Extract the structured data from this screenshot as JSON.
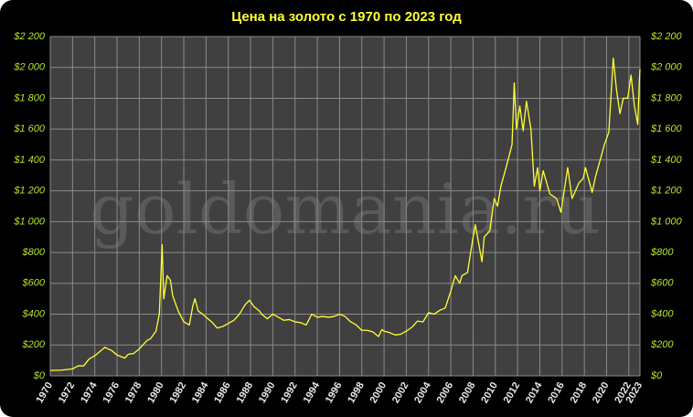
{
  "chart_data": {
    "type": "line",
    "title": "Цена на золото с 1970 по 2023 год",
    "watermark": "goldomania.ru",
    "color": "#ffff33",
    "grid": true,
    "xlim": [
      1970,
      2023
    ],
    "xticks": [
      1970,
      1972,
      1974,
      1976,
      1978,
      1980,
      1982,
      1984,
      1986,
      1988,
      1990,
      1992,
      1994,
      1996,
      1998,
      2000,
      2002,
      2004,
      2006,
      2008,
      2010,
      2012,
      2014,
      2016,
      2018,
      2020,
      2022,
      2023
    ],
    "ylim": [
      0,
      2200
    ],
    "yticks": [
      {
        "value": 0,
        "label": "$0"
      },
      {
        "value": 200,
        "label": "$200"
      },
      {
        "value": 400,
        "label": "$400"
      },
      {
        "value": 600,
        "label": "$600"
      },
      {
        "value": 800,
        "label": "$800"
      },
      {
        "value": 1000,
        "label": "$1 000"
      },
      {
        "value": 1200,
        "label": "$1 200"
      },
      {
        "value": 1400,
        "label": "$1 400"
      },
      {
        "value": 1600,
        "label": "$1 600"
      },
      {
        "value": 1800,
        "label": "$1 800"
      },
      {
        "value": 2000,
        "label": "$2 000"
      },
      {
        "value": 2200,
        "label": "$2 200"
      }
    ],
    "x": [
      1970,
      1971,
      1972,
      1972.5,
      1973,
      1973.5,
      1974,
      1974.5,
      1974.9,
      1975.5,
      1976,
      1976.7,
      1977,
      1977.5,
      1978,
      1978.7,
      1979,
      1979.5,
      1979.8,
      1980.05,
      1980.2,
      1980.5,
      1980.8,
      1981,
      1981.5,
      1982,
      1982.5,
      1982.8,
      1983,
      1983.3,
      1983.7,
      1984,
      1984.5,
      1985,
      1985.5,
      1986,
      1986.5,
      1987,
      1987.5,
      1987.9,
      1988.3,
      1988.8,
      1989,
      1989.5,
      1990,
      1990.5,
      1991,
      1991.5,
      1992,
      1992.5,
      1993,
      1993.5,
      1994,
      1994.5,
      1995,
      1995.5,
      1996,
      1996.5,
      1997,
      1997.5,
      1998,
      1998.5,
      1999,
      1999.5,
      1999.8,
      2000,
      2000.5,
      2001,
      2001.5,
      2002,
      2002.5,
      2003,
      2003.5,
      2004,
      2004.5,
      2005,
      2005.5,
      2006,
      2006.4,
      2006.8,
      2007,
      2007.5,
      2008,
      2008.2,
      2008.8,
      2009,
      2009.5,
      2009.9,
      2010.2,
      2010.5,
      2011,
      2011.5,
      2011.7,
      2011.9,
      2012.2,
      2012.5,
      2012.8,
      2013.2,
      2013.5,
      2013.8,
      2014,
      2014.3,
      2014.9,
      2015.5,
      2015.9,
      2016.5,
      2016.9,
      2017.5,
      2017.9,
      2018.1,
      2018.7,
      2019,
      2019.5,
      2019.8,
      2020.2,
      2020.6,
      2020.9,
      2021.2,
      2021.5,
      2021.9,
      2022.2,
      2022.5,
      2022.8,
      2022.95,
      2023
    ],
    "values": [
      35,
      37,
      45,
      65,
      65,
      110,
      130,
      160,
      185,
      165,
      135,
      115,
      140,
      145,
      175,
      230,
      240,
      290,
      400,
      850,
      500,
      650,
      620,
      520,
      420,
      350,
      330,
      450,
      500,
      420,
      400,
      380,
      350,
      310,
      320,
      340,
      360,
      400,
      460,
      490,
      450,
      420,
      400,
      370,
      400,
      380,
      360,
      365,
      350,
      345,
      330,
      400,
      380,
      385,
      380,
      385,
      400,
      385,
      350,
      330,
      295,
      295,
      285,
      255,
      300,
      290,
      280,
      265,
      270,
      290,
      315,
      355,
      350,
      410,
      400,
      425,
      440,
      550,
      650,
      600,
      650,
      670,
      900,
      980,
      740,
      900,
      940,
      1150,
      1100,
      1230,
      1360,
      1500,
      1900,
      1600,
      1750,
      1590,
      1780,
      1600,
      1230,
      1350,
      1200,
      1330,
      1180,
      1150,
      1060,
      1350,
      1150,
      1250,
      1280,
      1350,
      1190,
      1290,
      1420,
      1500,
      1580,
      2060,
      1850,
      1700,
      1800,
      1800,
      1950,
      1750,
      1630,
      1920,
      1990
    ]
  }
}
